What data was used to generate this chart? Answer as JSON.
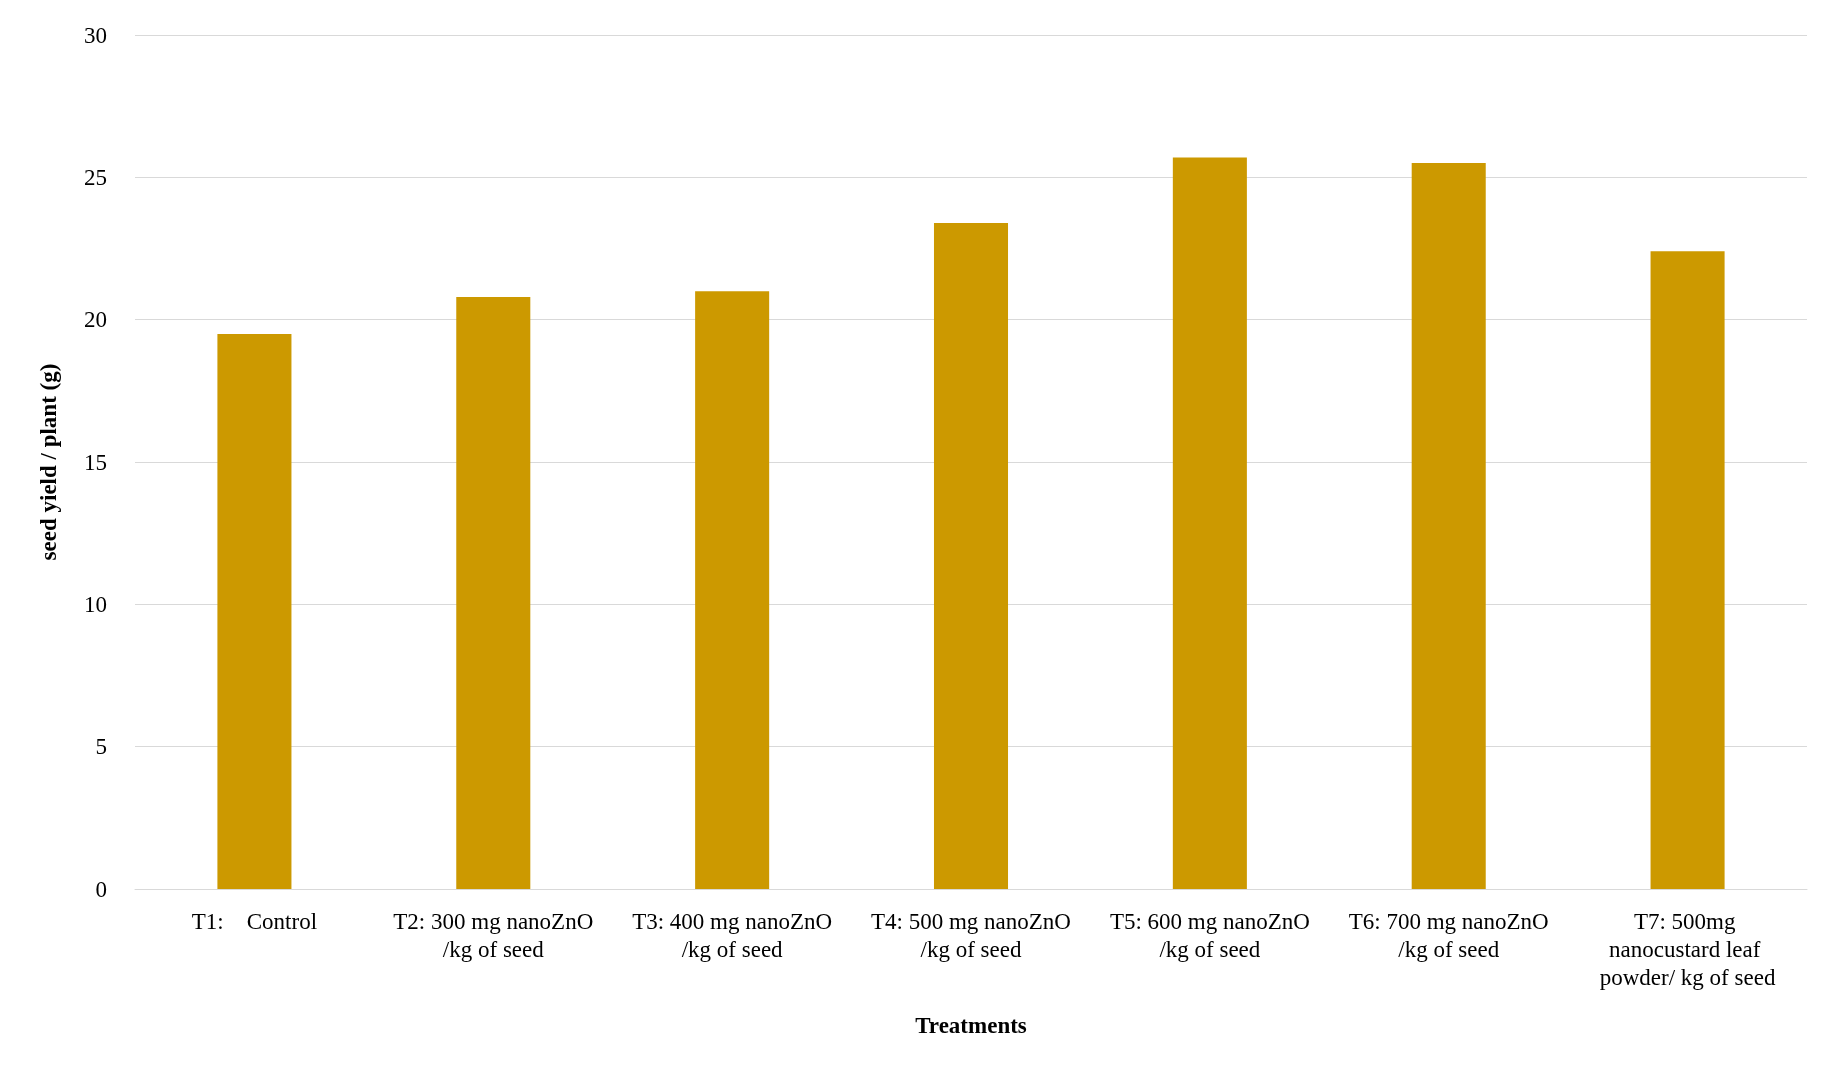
{
  "chart_data": {
    "type": "bar",
    "xlabel": "Treatments",
    "ylabel": "seed yield / plant (g)",
    "categories": [
      "T1:    Control",
      "T2: 300 mg nanoZnO/kg of seed",
      "T3: 400 mg nanoZnO/kg of seed",
      "T4: 500 mg nanoZnO/kg of seed",
      "T5: 600 mg nanoZnO/kg of seed",
      "T6: 700 mg nanoZnO/kg of seed",
      "T7: 500mg nanocustard leaf powder/ kg of seed"
    ],
    "values": [
      19.5,
      20.8,
      21.0,
      23.4,
      25.7,
      25.5,
      22.4
    ],
    "color": "#cc9900",
    "ylim": [
      0,
      30
    ],
    "yticks": [
      0,
      5,
      10,
      15,
      20,
      25,
      30
    ],
    "grid": "y"
  }
}
